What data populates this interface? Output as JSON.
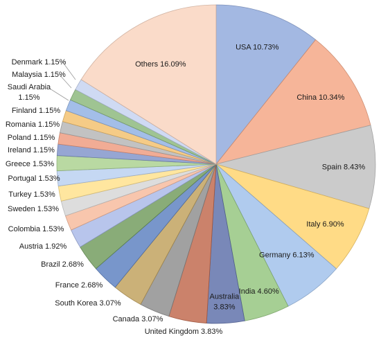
{
  "chart_data": {
    "type": "pie",
    "start_angle_deg": 90,
    "direction": "clockwise",
    "slices": [
      {
        "label": "USA",
        "value": 10.73,
        "text": "USA 10.73%",
        "color": "#8fa8dc"
      },
      {
        "label": "China",
        "value": 10.34,
        "text": "China 10.34%",
        "color": "#f4a582"
      },
      {
        "label": "Spain",
        "value": 8.43,
        "text": "Spain 8.43%",
        "color": "#c0c0c0"
      },
      {
        "label": "Italy",
        "value": 6.9,
        "text": "Italy 6.90%",
        "color": "#ffd36b"
      },
      {
        "label": "Germany",
        "value": 6.13,
        "text": "Germany 6.13%",
        "color": "#9fc0ea"
      },
      {
        "label": "India",
        "value": 4.6,
        "text": "India 4.60%",
        "color": "#93c47d"
      },
      {
        "label": "Australia",
        "value": 3.83,
        "text": "Australia\n3.83%",
        "color": "#5b6ea8"
      },
      {
        "label": "United Kingdom",
        "value": 3.83,
        "text": "United Kingdom 3.83%",
        "color": "#c0664a"
      },
      {
        "label": "Canada",
        "value": 3.07,
        "text": "Canada 3.07%",
        "color": "#8c8c8c"
      },
      {
        "label": "South Korea",
        "value": 3.07,
        "text": "South Korea 3.07%",
        "color": "#bfa05a"
      },
      {
        "label": "France",
        "value": 2.68,
        "text": "France 2.68%",
        "color": "#5a7fbf"
      },
      {
        "label": "Brazil",
        "value": 2.68,
        "text": "Brazil 2.68%",
        "color": "#6f9a5a"
      },
      {
        "label": "Austria",
        "value": 1.92,
        "text": "Austria 1.92%",
        "color": "#a8b8e8"
      },
      {
        "label": "Colombia",
        "value": 1.53,
        "text": "Colombia 1.53%",
        "color": "#f7b99b"
      },
      {
        "label": "Sweden",
        "value": 1.53,
        "text": "Sweden 1.53%",
        "color": "#d6d6d6"
      },
      {
        "label": "Turkey",
        "value": 1.53,
        "text": "Turkey 1.53%",
        "color": "#ffe08a"
      },
      {
        "label": "Portugal",
        "value": 1.53,
        "text": "Portugal 1.53%",
        "color": "#b8cff0"
      },
      {
        "label": "Greece",
        "value": 1.53,
        "text": "Greece 1.53%",
        "color": "#a9d18e"
      },
      {
        "label": "Ireland",
        "value": 1.15,
        "text": "Ireland 1.15%",
        "color": "#7f93c9"
      },
      {
        "label": "Poland",
        "value": 1.15,
        "text": "Poland 1.15%",
        "color": "#ee9a7e"
      },
      {
        "label": "Romania",
        "value": 1.15,
        "text": "Romania 1.15%",
        "color": "#b5b5b5"
      },
      {
        "label": "Finland",
        "value": 1.15,
        "text": "Finland 1.15%",
        "color": "#f3c06b"
      },
      {
        "label": "Saudi Arabia",
        "value": 1.15,
        "text": "Saudi Arabia\n1.15%",
        "color": "#8fb0e3"
      },
      {
        "label": "Malaysia",
        "value": 1.15,
        "text": "Malaysia 1.15%",
        "color": "#8ab77a"
      },
      {
        "label": "Denmark",
        "value": 1.15,
        "text": "Denmark 1.15%",
        "color": "#c4d2f0"
      },
      {
        "label": "Others",
        "value": 16.09,
        "text": "Others 16.09%",
        "color": "#f9d3bd"
      }
    ]
  }
}
